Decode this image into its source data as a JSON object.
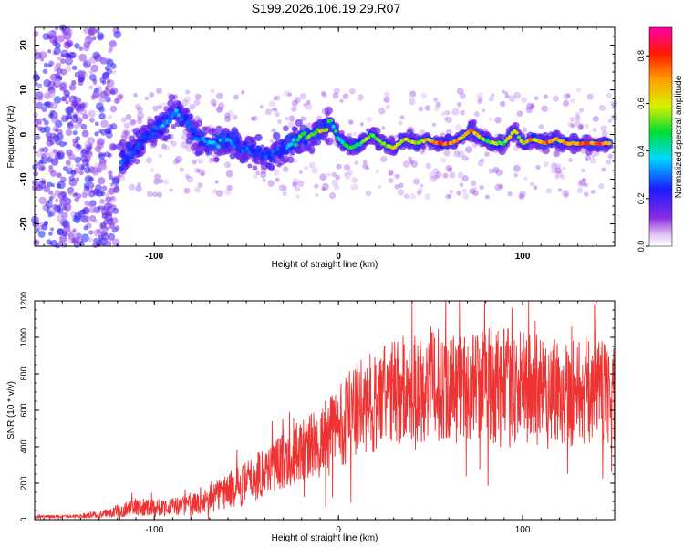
{
  "title": "S199.2026.106.19.29.R07",
  "chart_data": [
    {
      "type": "heatmap",
      "title": "S199.2026.106.19.29.R07",
      "xlabel": "Height of straight line (km)",
      "ylabel": "Frequency (Hz)",
      "xlim": [
        -165,
        150
      ],
      "ylim": [
        -25,
        24
      ],
      "x_ticks": [
        -100,
        0,
        100
      ],
      "y_ticks": [
        -20,
        -10,
        0,
        10,
        20
      ],
      "colorbar": {
        "label": "Normalized spectral amplitude",
        "range": [
          0.0,
          0.92
        ],
        "ticks": [
          0.0,
          0.2,
          0.4,
          0.6,
          0.8
        ],
        "colormap": "rainbow (white, violet, blue, cyan, green, yellow, orange, red, magenta)"
      },
      "ridge": {
        "description": "main spectral ridge (frequency vs height, with peak amplitude)",
        "x": [
          -118,
          -110,
          -103,
          -96,
          -89,
          -83,
          -76,
          -68,
          -60,
          -52,
          -45,
          -37,
          -30,
          -22,
          -15,
          -8,
          -4,
          0,
          6,
          12,
          18,
          24,
          30,
          36,
          42,
          48,
          54,
          60,
          66,
          72,
          78,
          84,
          90,
          96,
          100,
          106,
          112,
          118,
          124,
          130,
          136,
          142,
          148
        ],
        "y": [
          -6,
          -3,
          0,
          2,
          5,
          3,
          -1,
          -2,
          -1,
          -3,
          -4,
          -5,
          -3,
          -1,
          0,
          1,
          3,
          -1,
          -3,
          -2,
          0,
          -2,
          -3,
          -1,
          -2,
          -1,
          -2,
          -2,
          -1,
          1,
          -1,
          -2,
          -2,
          1,
          -2,
          -1,
          -2,
          -1,
          -2,
          -2,
          -2,
          -2,
          -2
        ],
        "amp": [
          0.35,
          0.3,
          0.3,
          0.35,
          0.4,
          0.3,
          0.3,
          0.4,
          0.35,
          0.3,
          0.3,
          0.3,
          0.3,
          0.5,
          0.6,
          0.7,
          0.5,
          0.45,
          0.5,
          0.55,
          0.6,
          0.55,
          0.65,
          0.7,
          0.65,
          0.7,
          0.85,
          0.8,
          0.7,
          0.9,
          0.6,
          0.55,
          0.6,
          0.65,
          0.7,
          0.75,
          0.8,
          0.8,
          0.85,
          0.85,
          0.8,
          0.85,
          0.8
        ]
      },
      "noise_region": {
        "description": "diffuse low-amplitude scatter",
        "x_range": [
          -165,
          -120
        ],
        "y_range": [
          -25,
          24
        ],
        "amp_range": [
          0.05,
          0.25
        ]
      }
    },
    {
      "type": "line",
      "xlabel": "Height of straight line (km)",
      "ylabel": "SNR (10 * v/v)",
      "xlim": [
        -165,
        150
      ],
      "ylim": [
        0,
        1200
      ],
      "x_ticks": [
        -100,
        0,
        100
      ],
      "y_ticks": [
        0,
        200,
        400,
        600,
        800,
        1000,
        1200
      ],
      "color": "#ee3333",
      "envelope": {
        "description": "mean level and fluctuation amplitude of the noisy SNR trace",
        "x": [
          -165,
          -140,
          -125,
          -110,
          -90,
          -75,
          -65,
          -50,
          -40,
          -30,
          -20,
          -10,
          -5,
          0,
          10,
          20,
          30,
          40,
          50,
          60,
          70,
          80,
          90,
          100,
          110,
          120,
          130,
          140,
          150
        ],
        "mean": [
          15,
          18,
          35,
          70,
          70,
          90,
          140,
          200,
          270,
          330,
          380,
          420,
          460,
          520,
          600,
          650,
          700,
          720,
          740,
          740,
          730,
          750,
          720,
          720,
          710,
          720,
          700,
          710,
          700
        ],
        "spread": [
          8,
          10,
          25,
          50,
          50,
          60,
          90,
          120,
          140,
          160,
          170,
          200,
          220,
          240,
          260,
          280,
          300,
          300,
          320,
          300,
          300,
          320,
          330,
          320,
          330,
          320,
          300,
          290,
          280
        ]
      }
    }
  ]
}
